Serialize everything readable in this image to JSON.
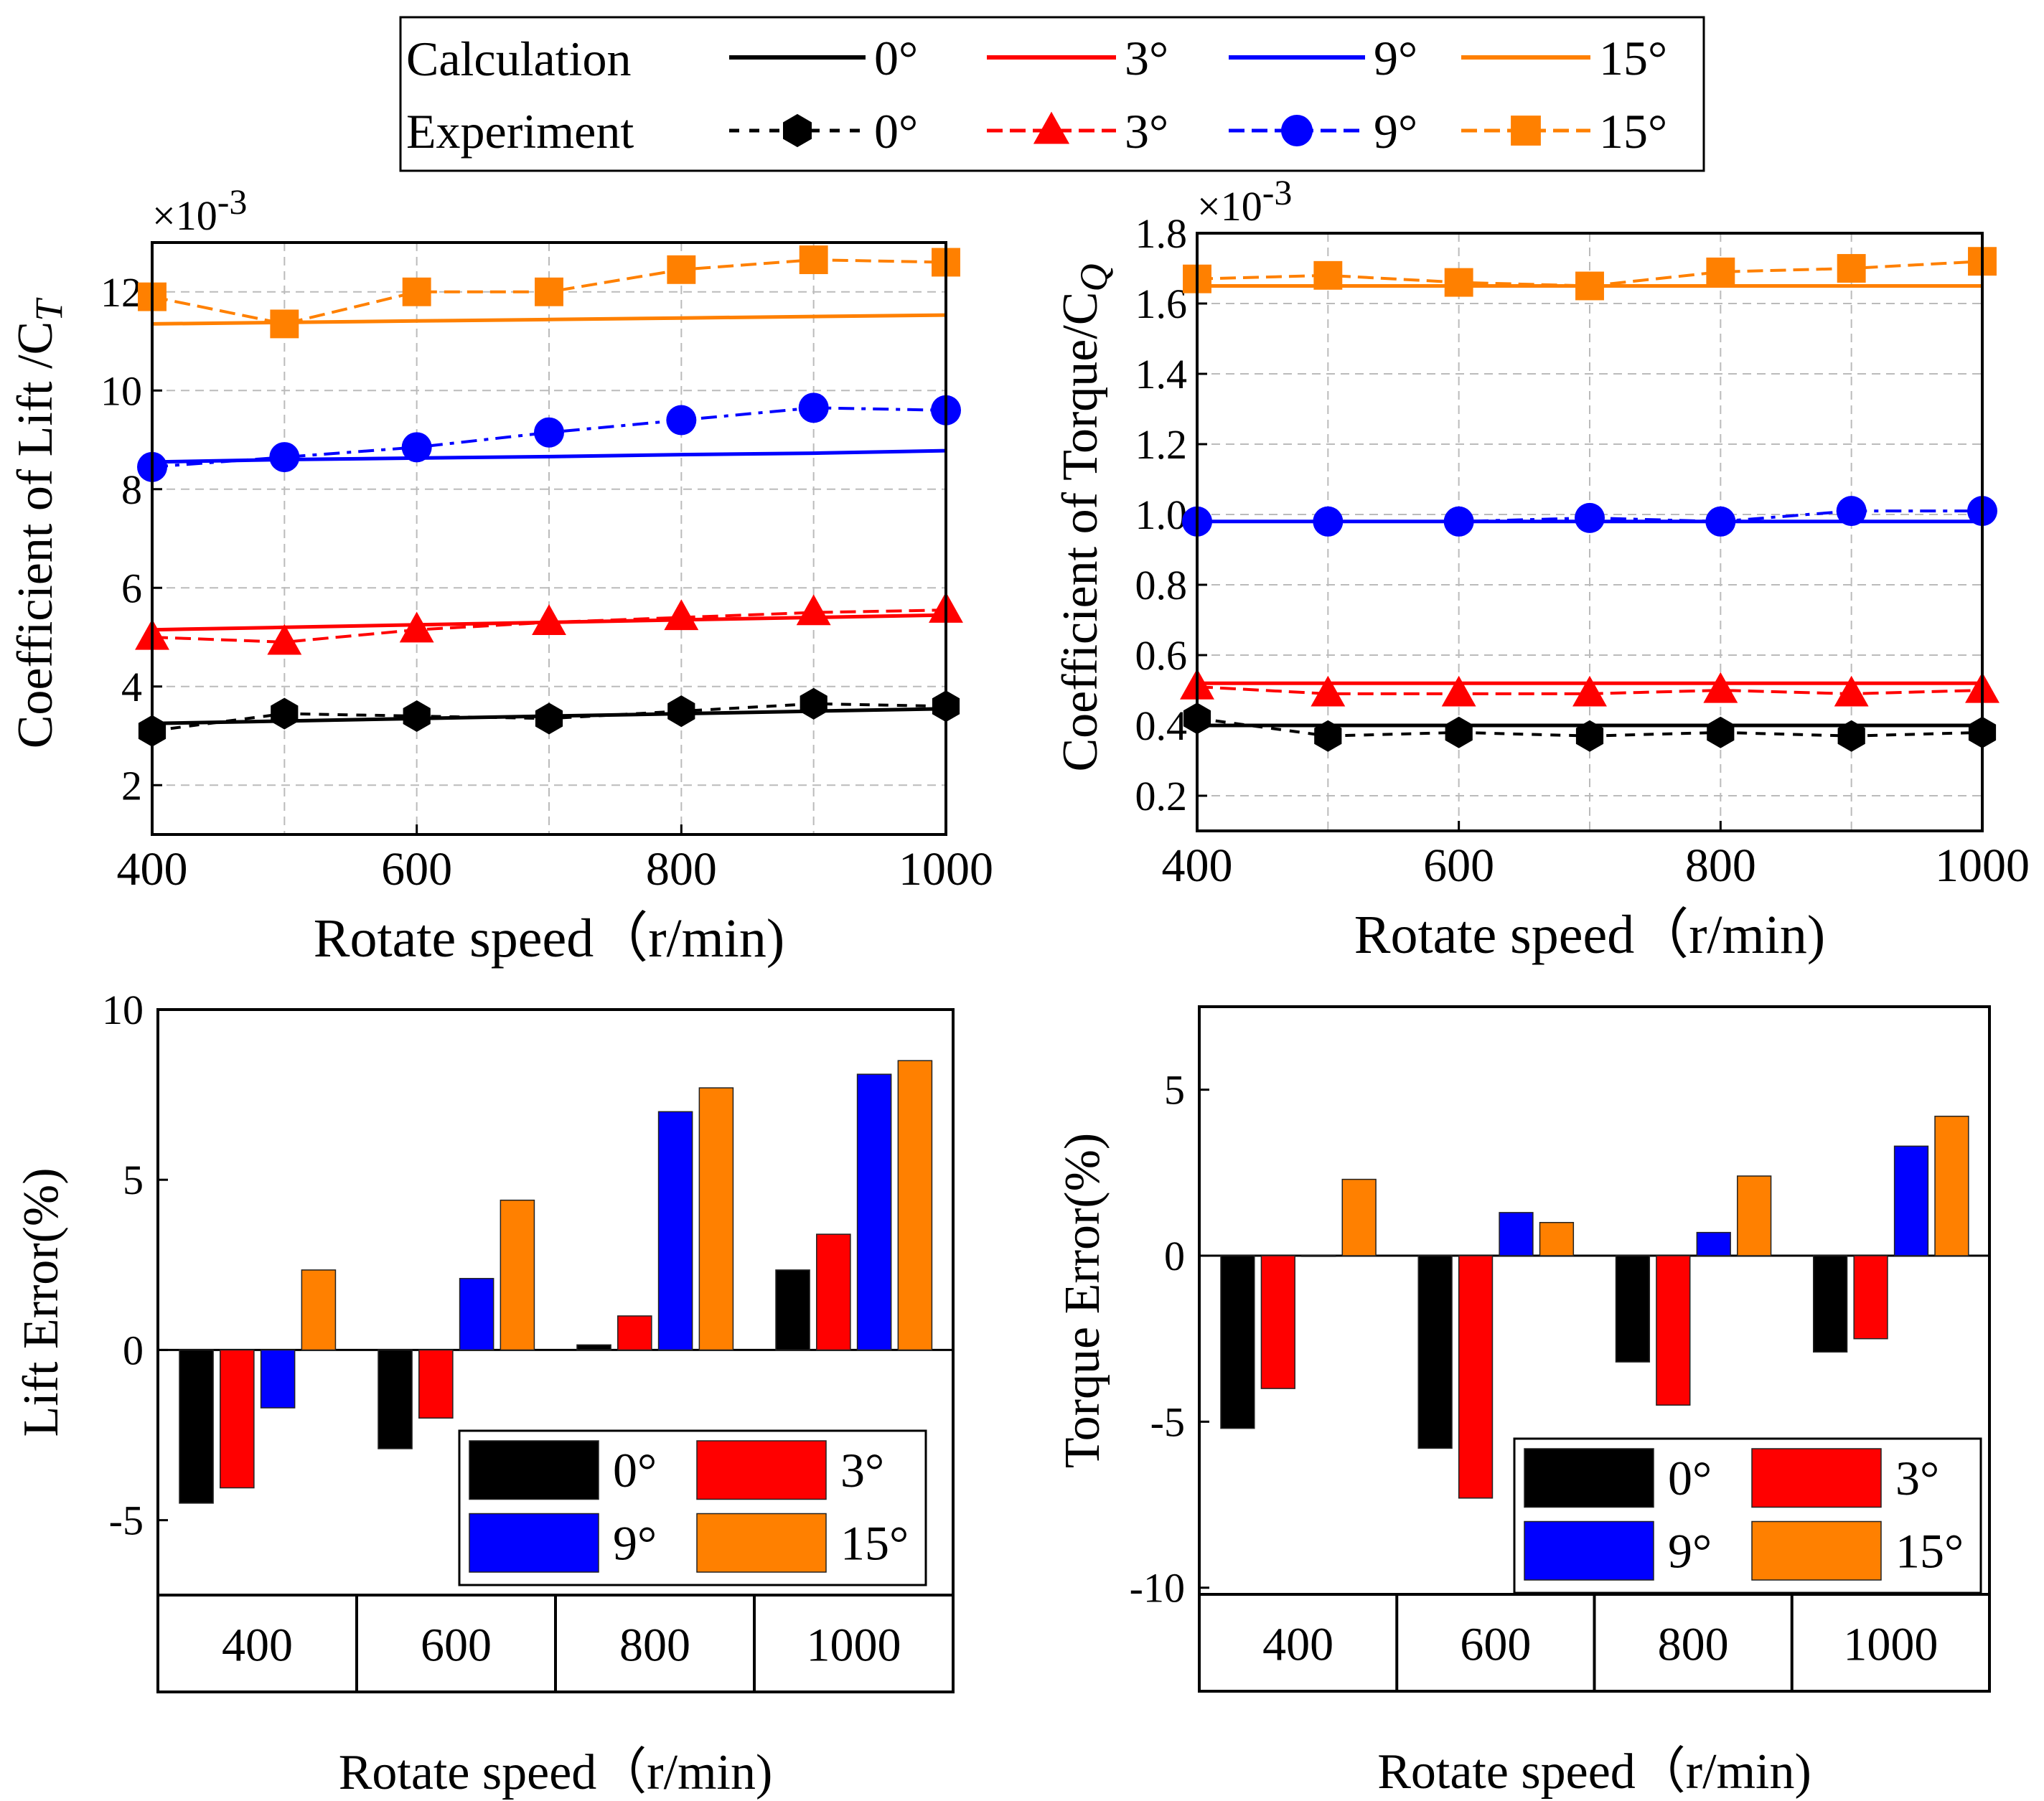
{
  "colors": {
    "c0": "#000000",
    "c3": "#ff0000",
    "c9": "#0000ff",
    "c15": "#ff8000"
  },
  "legend_top": {
    "row1_label": "Calculation",
    "row2_label": "Experiment",
    "entries": [
      "0°",
      "3°",
      "9°",
      "15°"
    ]
  },
  "chart_data": [
    {
      "type": "line",
      "title": "",
      "ylabel": "Coefficient of Lift /C",
      "ylabel_sub": "T",
      "xlabel": "Rotate speed（r/min)",
      "multiplier": "×10-3",
      "x": [
        400,
        500,
        600,
        700,
        800,
        900,
        1000
      ],
      "xticks": [
        "400",
        "600",
        "800",
        "1000"
      ],
      "yticks": [
        "2",
        "4",
        "6",
        "8",
        "10",
        "12"
      ],
      "xlim": [
        400,
        1000
      ],
      "ylim": [
        1.0,
        13.0
      ],
      "calculation": [
        {
          "name": "0°",
          "values": [
            3.25,
            3.3,
            3.35,
            3.4,
            3.45,
            3.5,
            3.55
          ]
        },
        {
          "name": "3°",
          "values": [
            5.15,
            5.2,
            5.25,
            5.3,
            5.35,
            5.4,
            5.45
          ]
        },
        {
          "name": "9°",
          "values": [
            8.55,
            8.6,
            8.63,
            8.66,
            8.7,
            8.73,
            8.78
          ]
        },
        {
          "name": "15°",
          "values": [
            11.35,
            11.38,
            11.41,
            11.44,
            11.47,
            11.5,
            11.53
          ]
        }
      ],
      "experiment": [
        {
          "name": "0°",
          "values": [
            3.1,
            3.45,
            3.4,
            3.35,
            3.5,
            3.65,
            3.6
          ]
        },
        {
          "name": "3°",
          "values": [
            5.0,
            4.9,
            5.15,
            5.3,
            5.4,
            5.5,
            5.55
          ]
        },
        {
          "name": "9°",
          "values": [
            8.45,
            8.65,
            8.85,
            9.15,
            9.4,
            9.65,
            9.6
          ]
        },
        {
          "name": "15°",
          "values": [
            11.9,
            11.35,
            12.0,
            12.0,
            12.45,
            12.65,
            12.6
          ]
        }
      ]
    },
    {
      "type": "line",
      "title": "",
      "ylabel": "Coefficient of Torque/C",
      "ylabel_sub": "Q",
      "xlabel": "Rotate speed（r/min)",
      "multiplier": "×10-3",
      "x": [
        400,
        500,
        600,
        700,
        800,
        900,
        1000
      ],
      "xticks": [
        "400",
        "600",
        "800",
        "1000"
      ],
      "yticks": [
        "0.2",
        "0.4",
        "0.6",
        "0.8",
        "1.0",
        "1.2",
        "1.4",
        "1.6",
        "1.8"
      ],
      "xlim": [
        400,
        1000
      ],
      "ylim": [
        0.1,
        1.8
      ],
      "calculation": [
        {
          "name": "0°",
          "values": [
            0.4,
            0.4,
            0.4,
            0.4,
            0.4,
            0.4,
            0.4
          ]
        },
        {
          "name": "3°",
          "values": [
            0.52,
            0.52,
            0.52,
            0.52,
            0.52,
            0.52,
            0.52
          ]
        },
        {
          "name": "9°",
          "values": [
            0.98,
            0.98,
            0.98,
            0.98,
            0.98,
            0.98,
            0.98
          ]
        },
        {
          "name": "15°",
          "values": [
            1.65,
            1.65,
            1.65,
            1.65,
            1.65,
            1.65,
            1.65
          ]
        }
      ],
      "experiment": [
        {
          "name": "0°",
          "values": [
            0.42,
            0.37,
            0.38,
            0.37,
            0.38,
            0.37,
            0.38
          ]
        },
        {
          "name": "3°",
          "values": [
            0.51,
            0.49,
            0.49,
            0.49,
            0.5,
            0.49,
            0.5
          ]
        },
        {
          "name": "9°",
          "values": [
            0.98,
            0.98,
            0.98,
            0.99,
            0.98,
            1.01,
            1.01
          ]
        },
        {
          "name": "15°",
          "values": [
            1.67,
            1.68,
            1.66,
            1.65,
            1.69,
            1.7,
            1.72
          ]
        }
      ]
    },
    {
      "type": "bar",
      "title": "",
      "ylabel": "Lift Error(%)",
      "xlabel": "Rotate speed（r/min)",
      "categories": [
        "400",
        "600",
        "800",
        "1000"
      ],
      "yticks": [
        "-5",
        "0",
        "5",
        "10"
      ],
      "ylim": [
        -7.2,
        10
      ],
      "series": [
        {
          "name": "0°",
          "values": [
            -4.5,
            -2.9,
            0.15,
            2.35
          ]
        },
        {
          "name": "3°",
          "values": [
            -4.05,
            -2.0,
            1.0,
            3.4
          ]
        },
        {
          "name": "9°",
          "values": [
            -1.7,
            2.1,
            7.0,
            8.1
          ]
        },
        {
          "name": "15°",
          "values": [
            2.35,
            4.4,
            7.7,
            8.5
          ]
        }
      ],
      "legend": [
        "0°",
        "3°",
        "9°",
        "15°"
      ]
    },
    {
      "type": "bar",
      "title": "",
      "ylabel": "Torque Error(%)",
      "xlabel": "Rotate speed（r/min)",
      "categories": [
        "400",
        "600",
        "800",
        "1000"
      ],
      "yticks": [
        "-10",
        "-5",
        "0",
        "5"
      ],
      "ylim": [
        -10.2,
        7.5
      ],
      "series": [
        {
          "name": "0°",
          "values": [
            -5.2,
            -5.8,
            -3.2,
            -2.9
          ]
        },
        {
          "name": "3°",
          "values": [
            -4.0,
            -7.3,
            -4.5,
            -2.5
          ]
        },
        {
          "name": "9°",
          "values": [
            0.0,
            1.3,
            0.7,
            3.3
          ]
        },
        {
          "name": "15°",
          "values": [
            2.3,
            1.0,
            2.4,
            4.2
          ]
        }
      ],
      "legend": [
        "0°",
        "3°",
        "9°",
        "15°"
      ]
    }
  ]
}
